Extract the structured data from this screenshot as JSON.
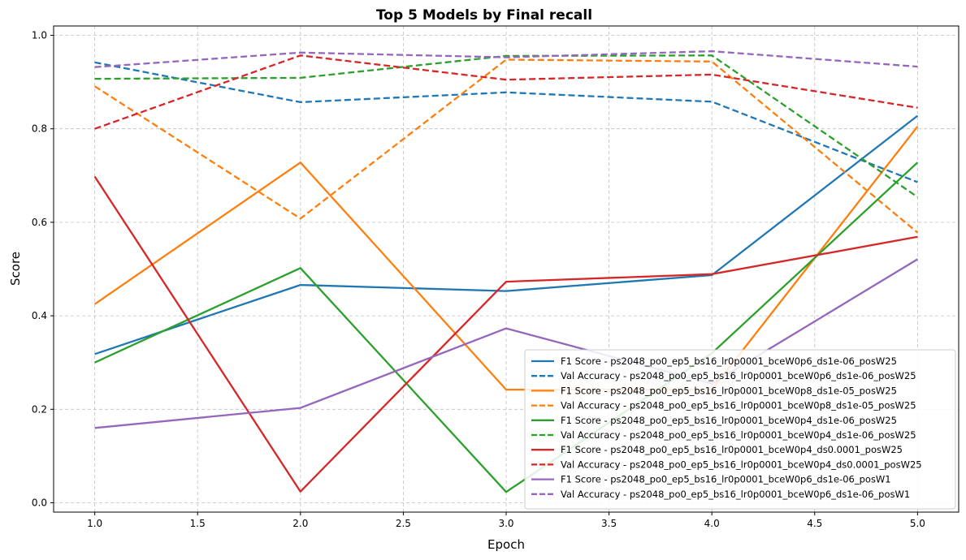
{
  "chart_data": {
    "type": "line",
    "title": "Top 5 Models by Final recall",
    "xlabel": "Epoch",
    "ylabel": "Score",
    "x": [
      1,
      2,
      3,
      4,
      5
    ],
    "xlim": [
      0.8,
      5.2
    ],
    "ylim": [
      -0.02,
      1.02
    ],
    "xticks": [
      1.0,
      1.5,
      2.0,
      2.5,
      3.0,
      3.5,
      4.0,
      4.5,
      5.0
    ],
    "xtick_labels": [
      "1.0",
      "1.5",
      "2.0",
      "2.5",
      "3.0",
      "3.5",
      "4.0",
      "4.5",
      "5.0"
    ],
    "yticks": [
      0.0,
      0.2,
      0.4,
      0.6,
      0.8,
      1.0
    ],
    "ytick_labels": [
      "0.0",
      "0.2",
      "0.4",
      "0.6",
      "0.8",
      "1.0"
    ],
    "grid": true,
    "legend_position": "lower-right",
    "series": [
      {
        "name": "F1 Score - ps2048_po0_ep5_bs16_lr0p0001_bceW0p6_ds1e-06_posW25",
        "color": "#1f77b4",
        "style": "solid",
        "values": [
          0.318,
          0.466,
          0.453,
          0.487,
          0.828
        ]
      },
      {
        "name": "Val Accuracy - ps2048_po0_ep5_bs16_lr0p0001_bceW0p6_ds1e-06_posW25",
        "color": "#1f77b4",
        "style": "dashed",
        "values": [
          0.942,
          0.857,
          0.878,
          0.858,
          0.686
        ]
      },
      {
        "name": "F1 Score - ps2048_po0_ep5_bs16_lr0p0001_bceW0p8_ds1e-05_posW25",
        "color": "#ff7f0e",
        "style": "solid",
        "values": [
          0.425,
          0.728,
          0.242,
          0.242,
          0.805
        ]
      },
      {
        "name": "Val Accuracy - ps2048_po0_ep5_bs16_lr0p0001_bceW0p8_ds1e-05_posW25",
        "color": "#ff7f0e",
        "style": "dashed",
        "values": [
          0.891,
          0.608,
          0.948,
          0.944,
          0.578
        ]
      },
      {
        "name": "F1 Score - ps2048_po0_ep5_bs16_lr0p0001_bceW0p4_ds1e-06_posW25",
        "color": "#2ca02c",
        "style": "solid",
        "values": [
          0.3,
          0.502,
          0.023,
          0.32,
          0.728
        ]
      },
      {
        "name": "Val Accuracy - ps2048_po0_ep5_bs16_lr0p0001_bceW0p4_ds1e-06_posW25",
        "color": "#2ca02c",
        "style": "dashed",
        "values": [
          0.907,
          0.909,
          0.956,
          0.957,
          0.654
        ]
      },
      {
        "name": "F1 Score - ps2048_po0_ep5_bs16_lr0p0001_bceW0p4_ds0.0001_posW25",
        "color": "#d62728",
        "style": "solid",
        "values": [
          0.698,
          0.024,
          0.473,
          0.489,
          0.569
        ]
      },
      {
        "name": "Val Accuracy - ps2048_po0_ep5_bs16_lr0p0001_bceW0p4_ds0.0001_posW25",
        "color": "#d62728",
        "style": "dashed",
        "values": [
          0.8,
          0.957,
          0.905,
          0.916,
          0.845
        ]
      },
      {
        "name": "F1 Score - ps2048_po0_ep5_bs16_lr0p0001_bceW0p6_ds1e-06_posW1",
        "color": "#9467bd",
        "style": "solid",
        "values": [
          0.16,
          0.203,
          0.373,
          0.255,
          0.521
        ]
      },
      {
        "name": "Val Accuracy - ps2048_po0_ep5_bs16_lr0p0001_bceW0p6_ds1e-06_posW1",
        "color": "#9467bd",
        "style": "dashed",
        "values": [
          0.932,
          0.963,
          0.953,
          0.966,
          0.933
        ]
      }
    ]
  }
}
